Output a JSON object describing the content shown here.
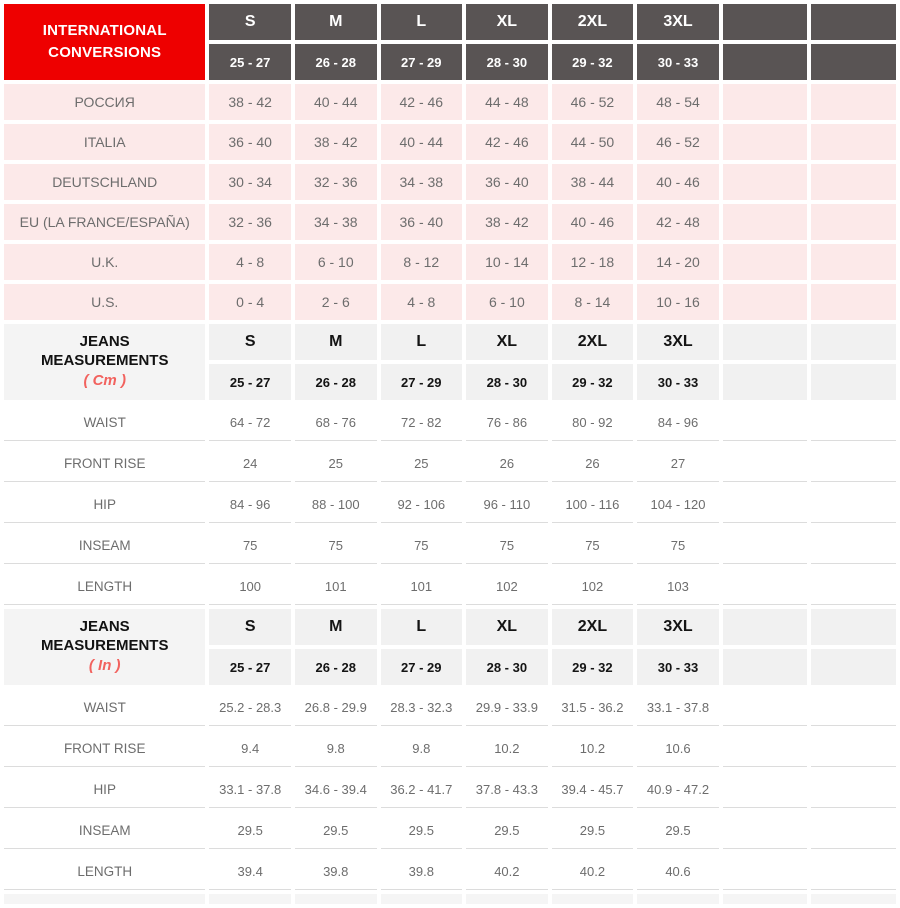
{
  "colors": {
    "accent_red": "#ee0000",
    "header_dark_gray": "#595454",
    "header_light_gray": "#f1f1f1",
    "row_pink": "#fce9e9",
    "unit_salmon": "#f2625e",
    "body_text_gray": "#6d6d6d",
    "row_border": "#dcdcdc"
  },
  "table": {
    "empty_columns": 2,
    "sections": [
      {
        "style": "dark",
        "body": "pink",
        "title_lines": [
          "INTERNATIONAL",
          "CONVERSIONS"
        ],
        "unit": null,
        "sizes": [
          "S",
          "M",
          "L",
          "XL",
          "2XL",
          "3XL"
        ],
        "ranges": [
          "25 - 27",
          "26 - 28",
          "27 - 29",
          "28 - 30",
          "29 - 32",
          "30 - 33"
        ],
        "rows": [
          {
            "label": "РОССИЯ",
            "values": [
              "38 - 42",
              "40 - 44",
              "42 - 46",
              "44 - 48",
              "46 - 52",
              "48 - 54"
            ]
          },
          {
            "label": "ITALIA",
            "values": [
              "36 - 40",
              "38 - 42",
              "40 - 44",
              "42 - 46",
              "44 - 50",
              "46 - 52"
            ]
          },
          {
            "label": "DEUTSCHLAND",
            "values": [
              "30 - 34",
              "32 - 36",
              "34 - 38",
              "36 - 40",
              "38 - 44",
              "40 - 46"
            ]
          },
          {
            "label": "EU (LA FRANCE/ESPAÑA)",
            "values": [
              "32 - 36",
              "34 - 38",
              "36 - 40",
              "38 - 42",
              "40 - 46",
              "42 - 48"
            ]
          },
          {
            "label": "U.K.",
            "values": [
              "4 - 8",
              "6 - 10",
              "8 - 12",
              "10 - 14",
              "12 - 18",
              "14 - 20"
            ]
          },
          {
            "label": "U.S.",
            "values": [
              "0 - 4",
              "2 - 6",
              "4 - 8",
              "6 - 10",
              "8 - 14",
              "10 - 16"
            ]
          }
        ]
      },
      {
        "style": "light",
        "body": "white",
        "title_lines": [
          "JEANS",
          "MEASUREMENTS"
        ],
        "unit": "( Cm )",
        "sizes": [
          "S",
          "M",
          "L",
          "XL",
          "2XL",
          "3XL"
        ],
        "ranges": [
          "25 - 27",
          "26 - 28",
          "27 - 29",
          "28 - 30",
          "29 - 32",
          "30 - 33"
        ],
        "rows": [
          {
            "label": "WAIST",
            "values": [
              "64 - 72",
              "68 - 76",
              "72 - 82",
              "76 - 86",
              "80 - 92",
              "84 - 96"
            ]
          },
          {
            "label": "FRONT RISE",
            "values": [
              "24",
              "25",
              "25",
              "26",
              "26",
              "27"
            ]
          },
          {
            "label": "HIP",
            "values": [
              "84 - 96",
              "88 - 100",
              "92 - 106",
              "96 - 110",
              "100 - 116",
              "104 - 120"
            ]
          },
          {
            "label": "INSEAM",
            "values": [
              "75",
              "75",
              "75",
              "75",
              "75",
              "75"
            ]
          },
          {
            "label": "LENGTH",
            "values": [
              "100",
              "101",
              "101",
              "102",
              "102",
              "103"
            ]
          }
        ]
      },
      {
        "style": "light",
        "body": "white",
        "title_lines": [
          "JEANS",
          "MEASUREMENTS"
        ],
        "unit": "( In )",
        "sizes": [
          "S",
          "M",
          "L",
          "XL",
          "2XL",
          "3XL"
        ],
        "ranges": [
          "25 - 27",
          "26 - 28",
          "27 - 29",
          "28 - 30",
          "29 - 32",
          "30 - 33"
        ],
        "rows": [
          {
            "label": "WAIST",
            "values": [
              "25.2 - 28.3",
              "26.8 - 29.9",
              "28.3 - 32.3",
              "29.9 - 33.9",
              "31.5 - 36.2",
              "33.1 - 37.8"
            ]
          },
          {
            "label": "FRONT RISE",
            "values": [
              "9.4",
              "9.8",
              "9.8",
              "10.2",
              "10.2",
              "10.6"
            ]
          },
          {
            "label": "HIP",
            "values": [
              "33.1 - 37.8",
              "34.6 - 39.4",
              "36.2 - 41.7",
              "37.8 - 43.3",
              "39.4 - 45.7",
              "40.9 - 47.2"
            ]
          },
          {
            "label": "INSEAM",
            "values": [
              "29.5",
              "29.5",
              "29.5",
              "29.5",
              "29.5",
              "29.5"
            ]
          },
          {
            "label": "LENGTH",
            "values": [
              "39.4",
              "39.8",
              "39.8",
              "40.2",
              "40.2",
              "40.6"
            ]
          }
        ]
      }
    ]
  }
}
